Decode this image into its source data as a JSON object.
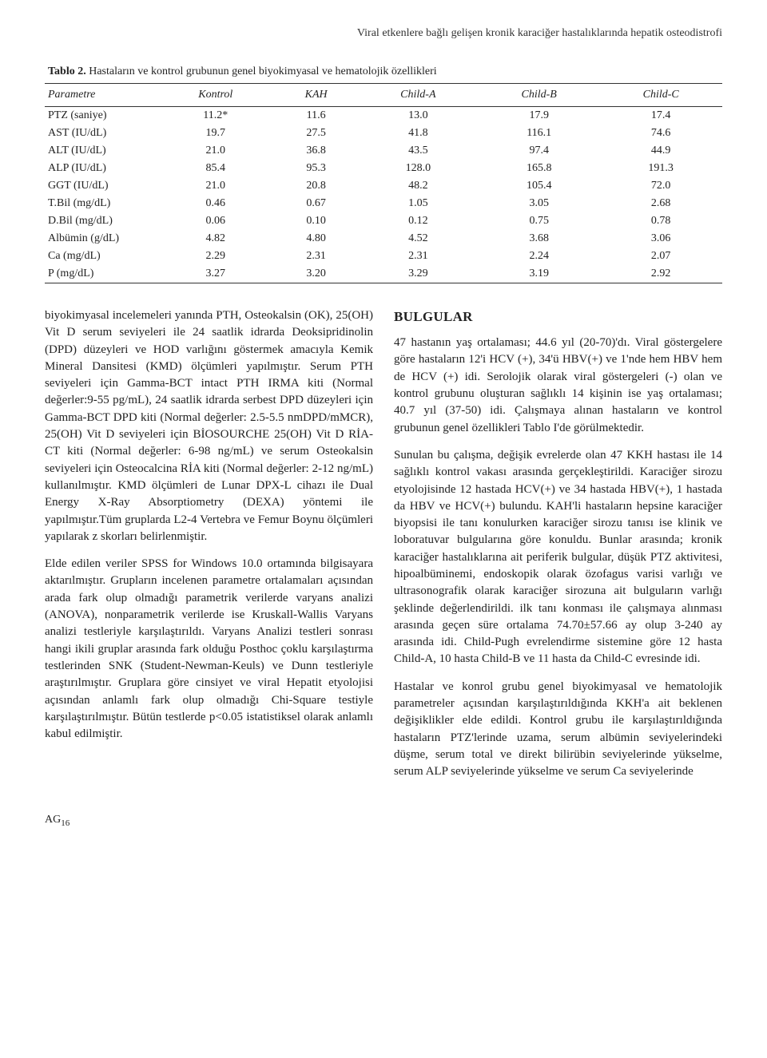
{
  "running_title": "Viral etkenlere bağlı gelişen kronik karaciğer hastalıklarında hepatik osteodistrofi",
  "table": {
    "caption_bold": "Tablo 2.",
    "caption_rest": " Hastaların ve kontrol grubunun genel biyokimyasal ve hematolojik özellikleri",
    "columns": [
      "Parametre",
      "Kontrol",
      "KAH",
      "Child-A",
      "Child-B",
      "Child-C"
    ],
    "rows": [
      [
        "PTZ (saniye)",
        "11.2*",
        "11.6",
        "13.0",
        "17.9",
        "17.4"
      ],
      [
        "AST (IU/dL)",
        "19.7",
        "27.5",
        "41.8",
        "116.1",
        "74.6"
      ],
      [
        "ALT (IU/dL)",
        "21.0",
        "36.8",
        "43.5",
        "97.4",
        "44.9"
      ],
      [
        "ALP (IU/dL)",
        "85.4",
        "95.3",
        "128.0",
        "165.8",
        "191.3"
      ],
      [
        "GGT (IU/dL)",
        "21.0",
        "20.8",
        "48.2",
        "105.4",
        "72.0"
      ],
      [
        "T.Bil (mg/dL)",
        "0.46",
        "0.67",
        "1.05",
        "3.05",
        "2.68"
      ],
      [
        "D.Bil (mg/dL)",
        "0.06",
        "0.10",
        "0.12",
        "0.75",
        "0.78"
      ],
      [
        "Albümin (g/dL)",
        "4.82",
        "4.80",
        "4.52",
        "3.68",
        "3.06"
      ],
      [
        "Ca (mg/dL)",
        "2.29",
        "2.31",
        "2.31",
        "2.24",
        "2.07"
      ],
      [
        "P (mg/dL)",
        "3.27",
        "3.20",
        "3.29",
        "3.19",
        "2.92"
      ]
    ]
  },
  "left_col": {
    "p1": "biyokimyasal incelemeleri yanında PTH, Osteokalsin (OK), 25(OH) Vit D serum seviyeleri ile 24 saatlik idrarda Deoksipridinolin (DPD) düzeyleri ve HOD varlığını göstermek amacıyla Kemik Mineral Dansitesi (KMD) ölçümleri yapılmıştır. Serum PTH seviyeleri için Gamma-BCT intact PTH IRMA kiti (Normal değerler:9-55 pg/mL), 24 saatlik idrarda serbest DPD düzeyleri için Gamma-BCT DPD kiti (Normal değerler: 2.5-5.5 nmDPD/mMCR), 25(OH) Vit D seviyeleri için BİOSOURCHE 25(OH) Vit D RİA-CT kiti (Normal değerler: 6-98 ng/mL) ve serum Osteokalsin seviyeleri için Osteocalcina RİA kiti (Normal değerler: 2-12 ng/mL) kullanılmıştır. KMD ölçümleri de Lunar DPX-L cihazı ile Dual Energy X-Ray Absorptiometry (DEXA) yöntemi ile yapılmıştır.Tüm gruplarda L2-4 Vertebra ve Femur Boynu ölçümleri yapılarak z skorları belirlenmiştir.",
    "p2": "Elde edilen veriler SPSS for Windows 10.0 ortamında bilgisayara aktarılmıştır. Grupların incelenen parametre ortalamaları açısından arada fark olup olmadığı parametrik verilerde varyans analizi (ANOVA), nonparametrik verilerde ise Kruskall-Wallis Varyans analizi testleriyle karşılaştırıldı. Varyans Analizi testleri sonrası hangi ikili gruplar arasında fark olduğu Posthoc çoklu karşılaştırma testlerinden SNK (Student-Newman-Keuls) ve Dunn testleriyle araştırılmıştır. Gruplara göre cinsiyet ve viral Hepatit etyolojisi açısından anlamlı fark olup olmadığı Chi-Square testiyle karşılaştırılmıştır. Bütün testlerde p<0.05 istatistiksel olarak anlamlı kabul edilmiştir."
  },
  "right_col": {
    "heading": "BULGULAR",
    "p1": "47 hastanın yaş ortalaması; 44.6 yıl (20-70)'dı. Viral göstergelere göre hastaların 12'i HCV (+), 34'ü HBV(+) ve 1'nde hem HBV hem de HCV (+) idi. Serolojik olarak viral göstergeleri (-) olan ve kontrol grubunu oluşturan sağlıklı 14 kişinin ise yaş ortalaması; 40.7 yıl (37-50) idi. Çalışmaya alınan hastaların ve kontrol grubunun genel özellikleri Tablo I'de görülmektedir.",
    "p2": "Sunulan bu çalışma, değişik evrelerde olan 47 KKH hastası ile 14 sağlıklı kontrol vakası arasında gerçekleştirildi. Karaciğer sirozu etyolojisinde 12 hastada HCV(+) ve 34 hastada HBV(+), 1 hastada da HBV ve HCV(+) bulundu. KAH'li hastaların hepsine karaciğer biyopsisi ile tanı konulurken karaciğer sirozu tanısı ise klinik ve loboratuvar bulgularına göre konuldu. Bunlar arasında; kronik karaciğer hastalıklarına ait periferik bulgular, düşük PTZ aktivitesi, hipoalbüminemi, endoskopik olarak özofagus varisi varlığı ve ultrasonografik olarak karaciğer sirozuna ait bulguların varlığı şeklinde değerlendirildi. ilk tanı konması ile çalışmaya alınması arasında geçen süre ortalama 74.70±57.66 ay olup 3-240 ay arasında idi. Child-Pugh evrelendirme sistemine göre 12 hasta Child-A, 10 hasta Child-B ve 11 hasta da Child-C evresinde idi.",
    "p3": "Hastalar ve konrol grubu genel biyokimyasal ve hematolojik parametreler açısından karşılaştırıldığında KKH'a ait beklenen değişiklikler elde edildi. Kontrol grubu ile karşılaştırıldığında hastaların PTZ'lerinde uzama, serum albümin seviyelerindeki düşme, serum total ve direkt bilirübin seviyelerinde yükselme, serum ALP seviyelerinde yükselme ve serum Ca seviyelerinde"
  },
  "page_label": "AG",
  "page_number": "16"
}
